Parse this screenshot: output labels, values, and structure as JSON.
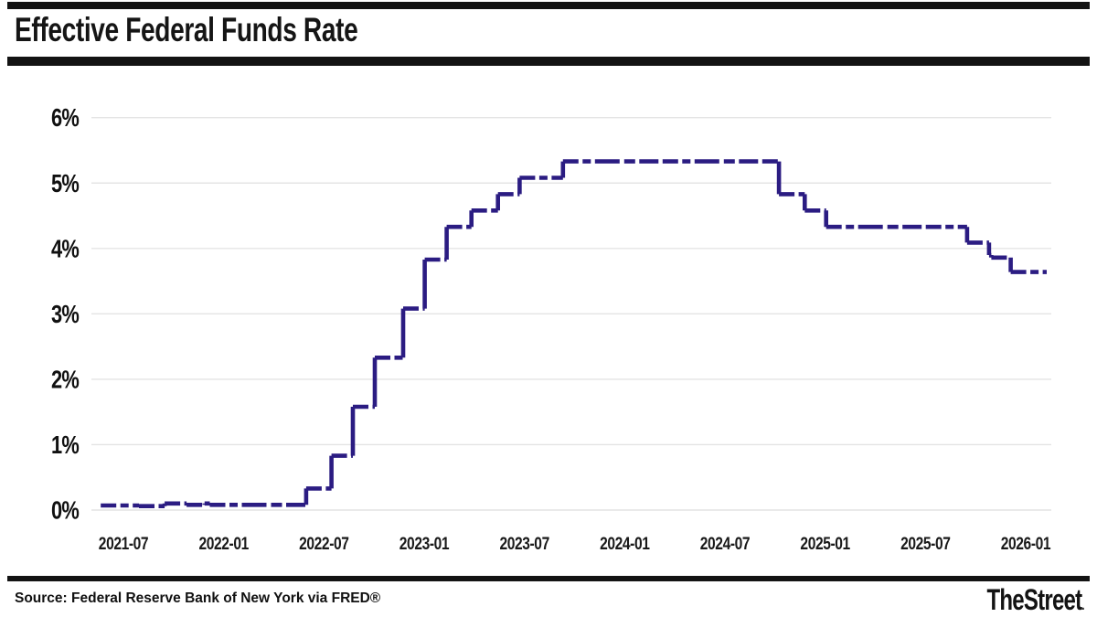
{
  "header": {
    "title": "Effective Federal Funds Rate"
  },
  "footer": {
    "source": "Source: Federal Reserve Bank of New York via FRED®",
    "brand": "TheStreet",
    "brand_dot": "."
  },
  "colors": {
    "line": "#2b1c82",
    "bars": "#131313",
    "grid": "#e4e4e4",
    "tick_text": "#1a1a1a"
  },
  "chart_data": {
    "type": "line",
    "title": "Effective Federal Funds Rate",
    "xlabel": "",
    "ylabel": "",
    "ylim": [
      0,
      6.3
    ],
    "grid": "horizontal",
    "legend": "none",
    "line_style": "stepped-dashed",
    "y_ticks": [
      "0%",
      "1%",
      "2%",
      "3%",
      "4%",
      "5%",
      "6%"
    ],
    "y_tick_values": [
      0,
      1,
      2,
      3,
      4,
      5,
      6
    ],
    "x_ticks": [
      "2021-07",
      "2022-01",
      "2022-07",
      "2023-01",
      "2023-07",
      "2024-01",
      "2024-07",
      "2025-01",
      "2025-07",
      "2026-01"
    ],
    "series": [
      {
        "name": "Effective Federal Funds Rate (%)",
        "points": [
          {
            "date": "2021-02-15",
            "value": 0.07
          },
          {
            "date": "2021-04-28",
            "value": 0.06
          },
          {
            "date": "2021-06-17",
            "value": 0.1
          },
          {
            "date": "2021-07-29",
            "value": 0.08
          },
          {
            "date": "2021-09-03",
            "value": 0.1
          },
          {
            "date": "2021-09-13",
            "value": 0.08
          },
          {
            "date": "2022-03-17",
            "value": 0.33
          },
          {
            "date": "2022-05-05",
            "value": 0.83
          },
          {
            "date": "2022-06-16",
            "value": 1.58
          },
          {
            "date": "2022-07-28",
            "value": 2.33
          },
          {
            "date": "2022-09-22",
            "value": 3.08
          },
          {
            "date": "2022-11-03",
            "value": 3.83
          },
          {
            "date": "2022-12-15",
            "value": 4.33
          },
          {
            "date": "2023-02-02",
            "value": 4.58
          },
          {
            "date": "2023-03-23",
            "value": 4.83
          },
          {
            "date": "2023-05-04",
            "value": 5.08
          },
          {
            "date": "2023-07-27",
            "value": 5.33
          },
          {
            "date": "2024-09-19",
            "value": 4.83
          },
          {
            "date": "2024-11-08",
            "value": 4.58
          },
          {
            "date": "2024-12-19",
            "value": 4.33
          },
          {
            "date": "2025-09-18",
            "value": 4.09
          },
          {
            "date": "2025-10-30",
            "value": 3.9
          },
          {
            "date": "2025-11-04",
            "value": 3.86
          },
          {
            "date": "2025-12-11",
            "value": 3.64
          },
          {
            "date": "2026-02-20",
            "value": 3.64
          }
        ]
      }
    ]
  }
}
